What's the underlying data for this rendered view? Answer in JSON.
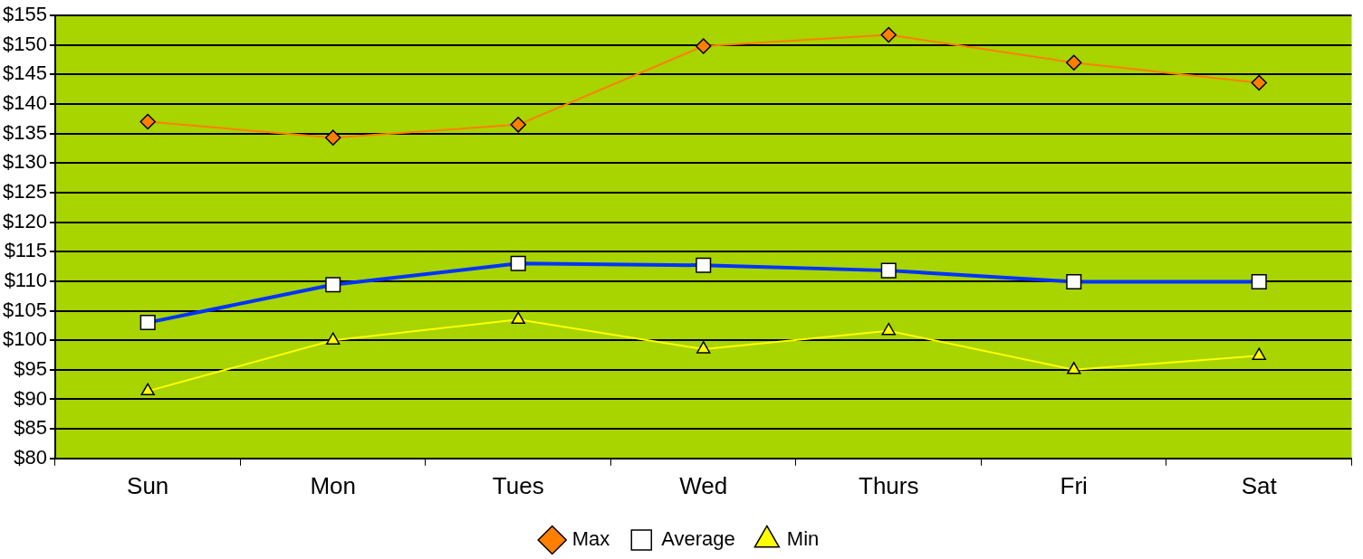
{
  "chart_data": {
    "type": "line",
    "categories": [
      "Sun",
      "Mon",
      "Tues",
      "Wed",
      "Thurs",
      "Fri",
      "Sat"
    ],
    "series": [
      {
        "name": "Max",
        "color": "#ff7f00",
        "marker": "diamond",
        "values": [
          137,
          134.3,
          136.5,
          149.8,
          151.7,
          147,
          143.6
        ]
      },
      {
        "name": "Average",
        "color": "#0033ff",
        "marker": "square",
        "values": [
          103,
          109.4,
          113,
          112.7,
          111.8,
          109.9,
          109.9
        ]
      },
      {
        "name": "Min",
        "color": "#ffff00",
        "marker": "triangle",
        "values": [
          91.4,
          100,
          103.5,
          98.5,
          101.6,
          95,
          97.4
        ]
      }
    ],
    "ylim": [
      80,
      155
    ],
    "yticks": [
      {
        "value": 80,
        "label": "$80"
      },
      {
        "value": 85,
        "label": "$85"
      },
      {
        "value": 90,
        "label": "$90"
      },
      {
        "value": 95,
        "label": "$95"
      },
      {
        "value": 100,
        "label": "$100"
      },
      {
        "value": 105,
        "label": "$105"
      },
      {
        "value": 110,
        "label": "$110"
      },
      {
        "value": 115,
        "label": "$115"
      },
      {
        "value": 120,
        "label": "$120"
      },
      {
        "value": 125,
        "label": "$125"
      },
      {
        "value": 130,
        "label": "$130"
      },
      {
        "value": 135,
        "label": "$135"
      },
      {
        "value": 140,
        "label": "$140"
      },
      {
        "value": 145,
        "label": "$145"
      },
      {
        "value": 150,
        "label": "$150"
      },
      {
        "value": 155,
        "label": "$155"
      }
    ],
    "grid": "y",
    "legend": "bottom"
  }
}
